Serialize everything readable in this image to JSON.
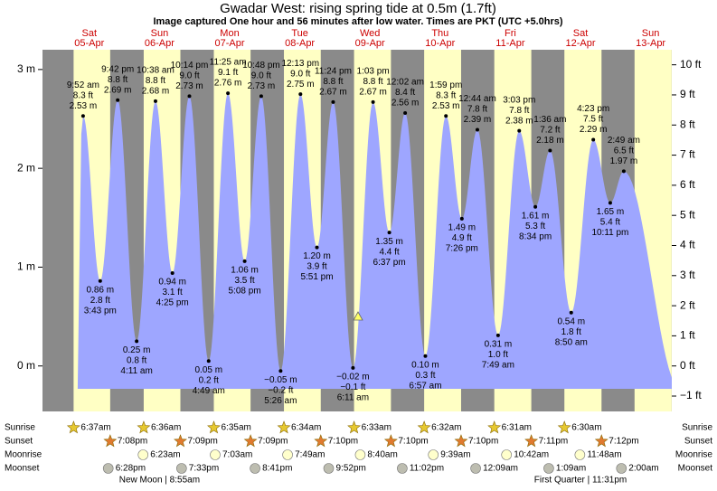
{
  "title": "Gwadar West: rising  spring tide at 0.5m (1.7ft)",
  "subtitle": "Image captured One hour and 56 minutes after low water. Times are PKT (UTC +5.0hrs)",
  "chart_data": {
    "type": "tide",
    "ylim": [
      -0.46,
      3.2
    ],
    "yticks": [
      {
        "value": 0,
        "label": "0 m"
      },
      {
        "value": 1,
        "label": "1 m"
      },
      {
        "value": 2,
        "label": "2 m"
      },
      {
        "value": 3,
        "label": "3 m"
      }
    ],
    "y2lim": [
      -1.51,
      10.5
    ],
    "y2ticks": [
      {
        "value": -1,
        "label": "−1 ft"
      },
      {
        "value": 0,
        "label": "0 ft"
      },
      {
        "value": 1,
        "label": "1 ft"
      },
      {
        "value": 2,
        "label": "2 ft"
      },
      {
        "value": 3,
        "label": "3 ft"
      },
      {
        "value": 4,
        "label": "4 ft"
      },
      {
        "value": 5,
        "label": "5 ft"
      },
      {
        "value": 6,
        "label": "6 ft"
      },
      {
        "value": 7,
        "label": "7 ft"
      },
      {
        "value": 8,
        "label": "8 ft"
      },
      {
        "value": 9,
        "label": "9 ft"
      },
      {
        "value": 10,
        "label": "10 ft"
      }
    ],
    "row_labels": {
      "sunrise": "Sunrise",
      "sunset": "Sunset",
      "moonrise": "Moonrise",
      "moonset": "Moonset"
    },
    "days": [
      {
        "weekday": "Sat",
        "date": "05-Apr",
        "sunrise": "6:37am",
        "sunset": "7:08pm",
        "moonrise": null,
        "moonset": "6:28pm",
        "phase": null,
        "tides": [
          {
            "time": "9:52 am",
            "m": 2.53,
            "m_label": "2.53 m",
            "ft_label": "8.3 ft"
          },
          {
            "time": "3:43 pm",
            "m": 0.86,
            "m_label": "0.86 m",
            "ft_label": "2.8 ft"
          },
          {
            "time": "9:42 pm",
            "m": 2.69,
            "m_label": "2.69 m",
            "ft_label": "8.8 ft"
          }
        ]
      },
      {
        "weekday": "Sun",
        "date": "06-Apr",
        "sunrise": "6:36am",
        "sunset": "7:09pm",
        "moonrise": "6:23am",
        "moonset": "7:33pm",
        "phase": "New Moon | 8:55am",
        "tides": [
          {
            "time": "4:11 am",
            "m": 0.25,
            "m_label": "0.25 m",
            "ft_label": "0.8 ft"
          },
          {
            "time": "10:38 am",
            "m": 2.68,
            "m_label": "2.68 m",
            "ft_label": "8.8 ft"
          },
          {
            "time": "4:25 pm",
            "m": 0.94,
            "m_label": "0.94 m",
            "ft_label": "3.1 ft"
          },
          {
            "time": "10:14 pm",
            "m": 2.73,
            "m_label": "2.73 m",
            "ft_label": "9.0 ft"
          }
        ]
      },
      {
        "weekday": "Mon",
        "date": "07-Apr",
        "sunrise": "6:35am",
        "sunset": "7:09pm",
        "moonrise": "7:03am",
        "moonset": "8:41pm",
        "phase": null,
        "tides": [
          {
            "time": "4:49 am",
            "m": 0.05,
            "m_label": "0.05 m",
            "ft_label": "0.2 ft"
          },
          {
            "time": "11:25 am",
            "m": 2.76,
            "m_label": "2.76 m",
            "ft_label": "9.1 ft"
          },
          {
            "time": "5:08 pm",
            "m": 1.06,
            "m_label": "1.06 m",
            "ft_label": "3.5 ft"
          },
          {
            "time": "10:48 pm",
            "m": 2.73,
            "m_label": "2.73 m",
            "ft_label": "9.0 ft"
          }
        ]
      },
      {
        "weekday": "Tue",
        "date": "08-Apr",
        "sunrise": "6:34am",
        "sunset": "7:10pm",
        "moonrise": "7:49am",
        "moonset": "9:52pm",
        "phase": null,
        "tides": [
          {
            "time": "5:26 am",
            "m": -0.05,
            "m_label": "−0.05 m",
            "ft_label": "−0.2 ft"
          },
          {
            "time": "12:13 pm",
            "m": 2.75,
            "m_label": "2.75 m",
            "ft_label": "9.0 ft"
          },
          {
            "time": "5:51 pm",
            "m": 1.2,
            "m_label": "1.20 m",
            "ft_label": "3.9 ft"
          },
          {
            "time": "11:24 pm",
            "m": 2.67,
            "m_label": "2.67 m",
            "ft_label": "8.8 ft"
          }
        ]
      },
      {
        "weekday": "Wed",
        "date": "09-Apr",
        "sunrise": "6:33am",
        "sunset": "7:10pm",
        "moonrise": "8:40am",
        "moonset": "11:02pm",
        "phase": null,
        "tides": [
          {
            "time": "6:11 am",
            "m": -0.02,
            "m_label": "−0.02 m",
            "ft_label": "−0.1 ft"
          },
          {
            "time": "1:03 pm",
            "m": 2.67,
            "m_label": "2.67 m",
            "ft_label": "8.8 ft"
          },
          {
            "time": "6:37 pm",
            "m": 1.35,
            "m_label": "1.35 m",
            "ft_label": "4.4 ft"
          }
        ]
      },
      {
        "weekday": "Thu",
        "date": "10-Apr",
        "sunrise": "6:32am",
        "sunset": "7:10pm",
        "moonrise": "9:39am",
        "moonset": null,
        "phase": null,
        "tides": [
          {
            "time": "12:02 am",
            "m": 2.56,
            "m_label": "2.56 m",
            "ft_label": "8.4 ft"
          },
          {
            "time": "6:57 am",
            "m": 0.1,
            "m_label": "0.10 m",
            "ft_label": "0.3 ft"
          },
          {
            "time": "1:59 pm",
            "m": 2.53,
            "m_label": "2.53 m",
            "ft_label": "8.3 ft"
          },
          {
            "time": "7:26 pm",
            "m": 1.49,
            "m_label": "1.49 m",
            "ft_label": "4.9 ft"
          }
        ]
      },
      {
        "weekday": "Fri",
        "date": "11-Apr",
        "sunrise": "6:31am",
        "sunset": "7:11pm",
        "moonrise": "10:42am",
        "moonset": "12:09am",
        "phase": null,
        "tides": [
          {
            "time": "12:44 am",
            "m": 2.39,
            "m_label": "2.39 m",
            "ft_label": "7.8 ft"
          },
          {
            "time": "7:49 am",
            "m": 0.31,
            "m_label": "0.31 m",
            "ft_label": "1.0 ft"
          },
          {
            "time": "3:03 pm",
            "m": 2.38,
            "m_label": "2.38 m",
            "ft_label": "7.8 ft"
          },
          {
            "time": "8:34 pm",
            "m": 1.61,
            "m_label": "1.61 m",
            "ft_label": "5.3 ft"
          }
        ]
      },
      {
        "weekday": "Sat",
        "date": "12-Apr",
        "sunrise": "6:30am",
        "sunset": "7:12pm",
        "moonrise": "11:48am",
        "moonset": "1:09am",
        "phase": "First Quarter | 11:31pm",
        "tides": [
          {
            "time": "1:36 am",
            "m": 2.18,
            "m_label": "2.18 m",
            "ft_label": "7.2 ft"
          },
          {
            "time": "8:50 am",
            "m": 0.54,
            "m_label": "0.54 m",
            "ft_label": "1.8 ft"
          },
          {
            "time": "4:23 pm",
            "m": 2.29,
            "m_label": "2.29 m",
            "ft_label": "7.5 ft"
          },
          {
            "time": "10:11 pm",
            "m": 1.65,
            "m_label": "1.65 m",
            "ft_label": "5.4 ft"
          }
        ]
      },
      {
        "weekday": "Sun",
        "date": "13-Apr",
        "sunrise": null,
        "sunset": null,
        "moonrise": null,
        "moonset": "2:00am",
        "phase": null,
        "tides": [
          {
            "time": "2:49 am",
            "m": 1.97,
            "m_label": "1.97 m",
            "ft_label": "6.5 ft"
          }
        ]
      }
    ]
  }
}
